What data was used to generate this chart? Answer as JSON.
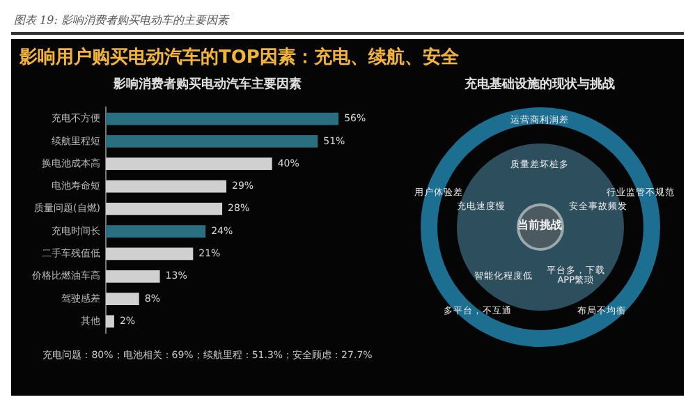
{
  "chart_data": [
    {
      "type": "bar",
      "orientation": "horizontal",
      "title": "影响用户购买电动汽车的TOP因素：充电、续航、安全",
      "subtitle": "影响消费者购买电动汽车主要因素",
      "categories": [
        "充电不方便",
        "续航里程短",
        "换电池成本高",
        "电池寿命短",
        "质量问题(自燃)",
        "充电时间长",
        "二手车残值低",
        "价格比燃油车高",
        "驾驶感差",
        "其他"
      ],
      "values": [
        56,
        51,
        40,
        29,
        28,
        24,
        21,
        13,
        8,
        2
      ],
      "colors": [
        "#2a6f80",
        "#2a6f80",
        "#d0d0d0",
        "#d0d0d0",
        "#d0d0d0",
        "#2a6f80",
        "#d0d0d0",
        "#d0d0d0",
        "#d0d0d0",
        "#d0d0d0"
      ],
      "value_labels": [
        "56%",
        "51%",
        "40%",
        "29%",
        "28%",
        "24%",
        "21%",
        "13%",
        "8%",
        "2%"
      ],
      "annotations": [
        "图表 19: 影响消费者购买电动车的主要因素",
        "充电问题：80%；电池相关：69%；续航里程：51.3%；安全顾虑：27.7%"
      ]
    },
    {
      "type": "other",
      "title": "充电基础设施的现状与挑战",
      "annotations": [
        "当前挑战",
        "质量差坏桩多",
        "安全事故频发",
        "平台多，下载APP繁琐",
        "智能化程度低",
        "充电速度慢",
        "运营商利润差",
        "行业监管不规范",
        "布局不均衡",
        "多平台，不互通",
        "用户体验差"
      ]
    }
  ]
}
